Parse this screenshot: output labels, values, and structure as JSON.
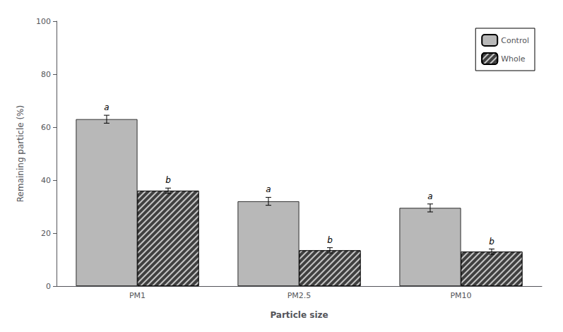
{
  "chart_data": {
    "type": "bar",
    "xlabel": "Particle size",
    "ylabel": "Remaining particle (%)",
    "categories": [
      "PM1",
      "PM2.5",
      "PM10"
    ],
    "series": [
      {
        "name": "Control",
        "color": "#b8b8b8",
        "values": [
          63.0,
          32.0,
          29.5
        ],
        "errors": [
          1.5,
          1.5,
          1.5
        ],
        "annotations": [
          "a",
          "a",
          "a"
        ]
      },
      {
        "name": "Whole",
        "color": "#404040",
        "values": [
          36.0,
          13.5,
          13.0
        ],
        "errors": [
          1.0,
          1.0,
          1.0
        ],
        "annotations": [
          "b",
          "b",
          "b"
        ]
      }
    ],
    "ylim": [
      0,
      100
    ],
    "yticks": [
      0,
      20,
      40,
      60,
      80,
      100
    ],
    "grid": false,
    "legend": "upper right"
  }
}
